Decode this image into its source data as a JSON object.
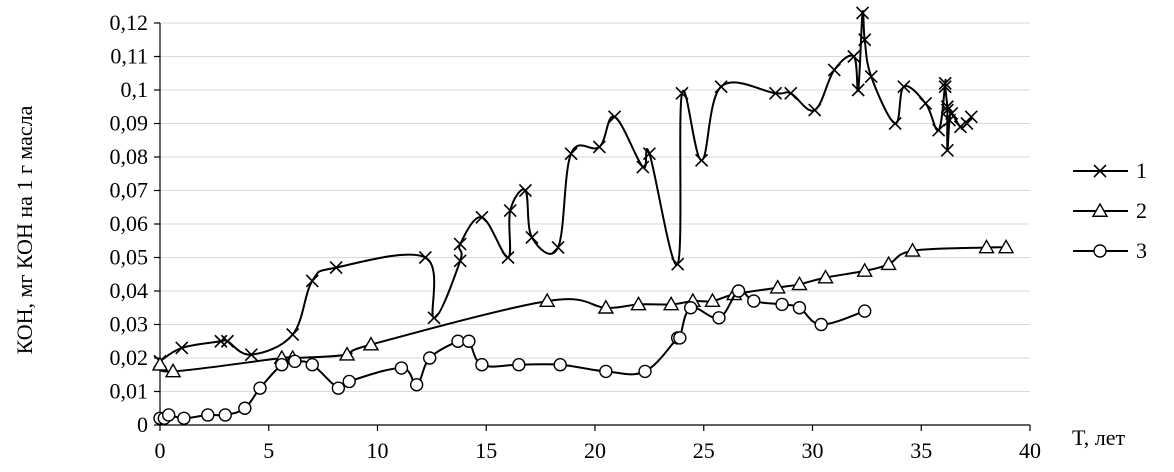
{
  "chart_data": {
    "type": "line",
    "title": "",
    "xlabel": "T, лет",
    "ylabel": "КОН, мг КОН на 1 г масла",
    "xlim": [
      0,
      40
    ],
    "ylim": [
      0,
      0.12
    ],
    "x_ticks": [
      0,
      5,
      10,
      15,
      20,
      25,
      30,
      35,
      40
    ],
    "x_tick_labels": [
      "0",
      "5",
      "10",
      "15",
      "20",
      "25",
      "30",
      "35",
      "40"
    ],
    "y_ticks": [
      0,
      0.01,
      0.02,
      0.03,
      0.04,
      0.05,
      0.06,
      0.07,
      0.08,
      0.09,
      0.1,
      0.11,
      0.12
    ],
    "y_tick_labels": [
      "0",
      "0,01",
      "0,02",
      "0,03",
      "0,04",
      "0,05",
      "0,06",
      "0,07",
      "0,08",
      "0,09",
      "0,1",
      "0,11",
      "0,12"
    ],
    "grid": "horizontal",
    "legend": "right",
    "series": [
      {
        "name": "1",
        "marker": "x",
        "points": [
          [
            0,
            0.019
          ],
          [
            1,
            0.023
          ],
          [
            2.8,
            0.025
          ],
          [
            3.1,
            0.025
          ],
          [
            4.2,
            0.021
          ],
          [
            6.1,
            0.027
          ],
          [
            7,
            0.043
          ],
          [
            8.1,
            0.047
          ],
          [
            12.2,
            0.05
          ],
          [
            12.6,
            0.032
          ],
          [
            13.8,
            0.049
          ],
          [
            13.8,
            0.054
          ],
          [
            14.8,
            0.062
          ],
          [
            16,
            0.05
          ],
          [
            16.1,
            0.064
          ],
          [
            16.8,
            0.07
          ],
          [
            17.1,
            0.056
          ],
          [
            18.3,
            0.053
          ],
          [
            18.9,
            0.081
          ],
          [
            20.2,
            0.083
          ],
          [
            20.9,
            0.092
          ],
          [
            22.2,
            0.077
          ],
          [
            22.5,
            0.081
          ],
          [
            23.8,
            0.048
          ],
          [
            24,
            0.099
          ],
          [
            24.9,
            0.079
          ],
          [
            25.8,
            0.101
          ],
          [
            28.3,
            0.099
          ],
          [
            29,
            0.099
          ],
          [
            30.1,
            0.094
          ],
          [
            31,
            0.106
          ],
          [
            31.9,
            0.11
          ],
          [
            32.1,
            0.1
          ],
          [
            32.3,
            0.123
          ],
          [
            32.4,
            0.115
          ],
          [
            32.7,
            0.104
          ],
          [
            33.8,
            0.09
          ],
          [
            34.2,
            0.101
          ],
          [
            35.2,
            0.096
          ],
          [
            35.8,
            0.088
          ],
          [
            36.1,
            0.102
          ],
          [
            36.1,
            0.101
          ],
          [
            36.2,
            0.095
          ],
          [
            36.2,
            0.094
          ],
          [
            36.2,
            0.082
          ],
          [
            36.3,
            0.091
          ],
          [
            36.4,
            0.093
          ],
          [
            36.8,
            0.089
          ],
          [
            37.1,
            0.09
          ],
          [
            37.3,
            0.092
          ]
        ]
      },
      {
        "name": "2",
        "marker": "triangle",
        "points": [
          [
            0,
            0.018
          ],
          [
            0.6,
            0.016
          ],
          [
            5.6,
            0.02
          ],
          [
            6.1,
            0.02
          ],
          [
            8.6,
            0.021
          ],
          [
            9.7,
            0.024
          ],
          [
            17.8,
            0.037
          ],
          [
            20.5,
            0.035
          ],
          [
            22,
            0.036
          ],
          [
            23.5,
            0.036
          ],
          [
            24.5,
            0.037
          ],
          [
            25.4,
            0.037
          ],
          [
            26.4,
            0.039
          ],
          [
            28.4,
            0.041
          ],
          [
            29.4,
            0.042
          ],
          [
            30.6,
            0.044
          ],
          [
            32.4,
            0.046
          ],
          [
            33.5,
            0.048
          ],
          [
            34.6,
            0.052
          ],
          [
            38,
            0.053
          ],
          [
            38.9,
            0.053
          ]
        ]
      },
      {
        "name": "3",
        "marker": "circle",
        "points": [
          [
            0,
            0.002
          ],
          [
            0.2,
            0.002
          ],
          [
            0.4,
            0.003
          ],
          [
            1.1,
            0.002
          ],
          [
            2.2,
            0.003
          ],
          [
            3,
            0.003
          ],
          [
            3.9,
            0.005
          ],
          [
            4.6,
            0.011
          ],
          [
            5.6,
            0.018
          ],
          [
            6.2,
            0.019
          ],
          [
            7,
            0.018
          ],
          [
            8.2,
            0.011
          ],
          [
            8.7,
            0.013
          ],
          [
            11.1,
            0.017
          ],
          [
            11.8,
            0.012
          ],
          [
            12.4,
            0.02
          ],
          [
            13.7,
            0.025
          ],
          [
            14.2,
            0.025
          ],
          [
            14.8,
            0.018
          ],
          [
            16.5,
            0.018
          ],
          [
            18.4,
            0.018
          ],
          [
            20.5,
            0.016
          ],
          [
            22.3,
            0.016
          ],
          [
            23.8,
            0.026
          ],
          [
            23.9,
            0.026
          ],
          [
            24.4,
            0.035
          ],
          [
            25.7,
            0.032
          ],
          [
            26.6,
            0.04
          ],
          [
            27.3,
            0.037
          ],
          [
            28.6,
            0.036
          ],
          [
            29.4,
            0.035
          ],
          [
            30.4,
            0.03
          ],
          [
            32.4,
            0.034
          ]
        ]
      }
    ]
  }
}
